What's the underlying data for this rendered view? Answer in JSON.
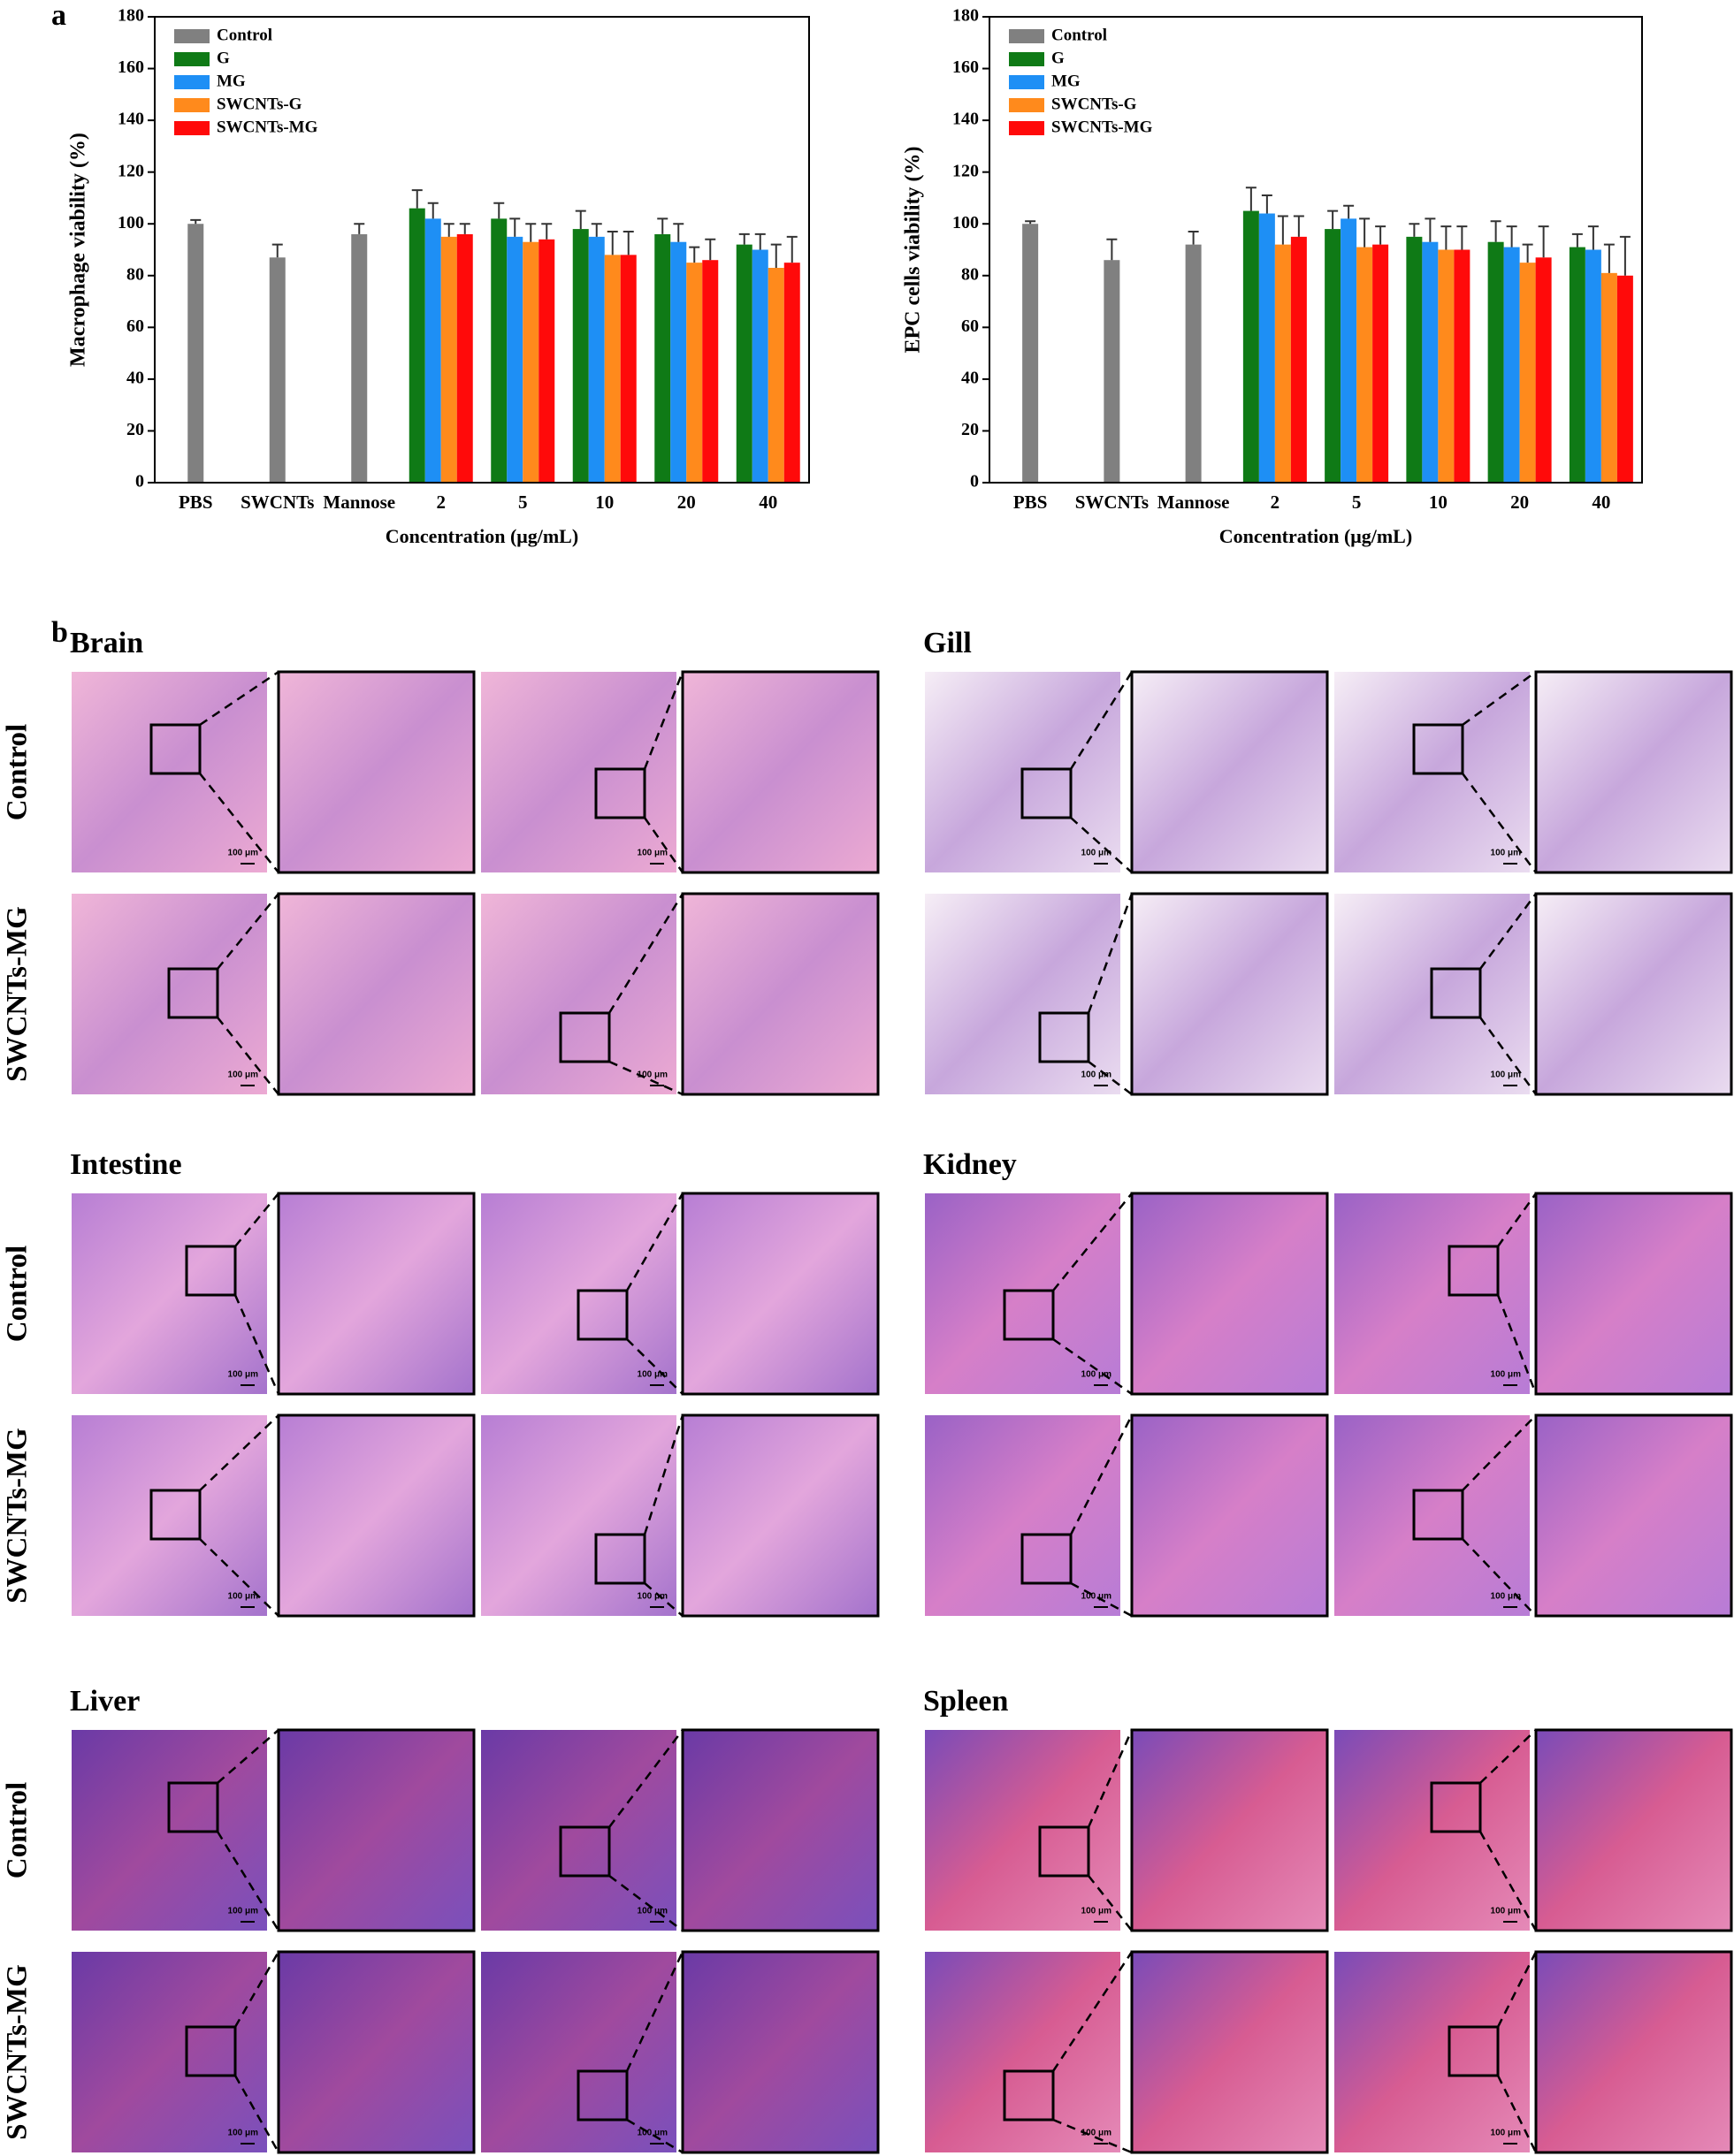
{
  "panel_labels": [
    "a",
    "b"
  ],
  "chart_data": [
    {
      "type": "bar",
      "ylabel": "Macrophage viability (%)",
      "xlabel": "Concentration (μg/mL)",
      "categories": [
        "PBS",
        "SWCNTs",
        "Mannose",
        "2",
        "5",
        "10",
        "20",
        "40"
      ],
      "ylim": [
        0,
        180
      ],
      "yticks": [
        0,
        20,
        40,
        60,
        80,
        100,
        120,
        140,
        160,
        180
      ],
      "legend": "upper-left",
      "series": [
        {
          "name": "Control",
          "color": "#808080",
          "values": [
            100,
            87,
            96,
            null,
            null,
            null,
            null,
            null
          ],
          "errors": [
            1.5,
            5,
            4,
            null,
            null,
            null,
            null,
            null
          ]
        },
        {
          "name": "G",
          "color": "#0f7a16",
          "values": [
            null,
            null,
            null,
            106,
            102,
            98,
            96,
            92
          ],
          "errors": [
            null,
            null,
            null,
            7,
            6,
            7,
            6,
            4
          ]
        },
        {
          "name": "MG",
          "color": "#1e8ff5",
          "values": [
            null,
            null,
            null,
            102,
            95,
            95,
            93,
            90
          ],
          "errors": [
            null,
            null,
            null,
            6,
            7,
            5,
            7,
            6
          ]
        },
        {
          "name": "SWCNTs-G",
          "color": "#ff8a1c",
          "values": [
            null,
            null,
            null,
            95,
            93,
            88,
            85,
            83
          ],
          "errors": [
            null,
            null,
            null,
            5,
            7,
            9,
            6,
            9
          ]
        },
        {
          "name": "SWCNTs-MG",
          "color": "#ff0a0a",
          "values": [
            null,
            null,
            null,
            96,
            94,
            88,
            86,
            85
          ],
          "errors": [
            null,
            null,
            null,
            4,
            6,
            9,
            8,
            10
          ]
        }
      ]
    },
    {
      "type": "bar",
      "ylabel": "EPC cells viability (%)",
      "xlabel": "Concentration (μg/mL)",
      "categories": [
        "PBS",
        "SWCNTs",
        "Mannose",
        "2",
        "5",
        "10",
        "20",
        "40"
      ],
      "ylim": [
        0,
        180
      ],
      "yticks": [
        0,
        20,
        40,
        60,
        80,
        100,
        120,
        140,
        160,
        180
      ],
      "legend": "upper-left",
      "series": [
        {
          "name": "Control",
          "color": "#808080",
          "values": [
            100,
            86,
            92,
            null,
            null,
            null,
            null,
            null
          ],
          "errors": [
            1,
            8,
            5,
            null,
            null,
            null,
            null,
            null
          ]
        },
        {
          "name": "G",
          "color": "#0f7a16",
          "values": [
            null,
            null,
            null,
            105,
            98,
            95,
            93,
            91
          ],
          "errors": [
            null,
            null,
            null,
            9,
            7,
            5,
            8,
            5
          ]
        },
        {
          "name": "MG",
          "color": "#1e8ff5",
          "values": [
            null,
            null,
            null,
            104,
            102,
            93,
            91,
            90
          ],
          "errors": [
            null,
            null,
            null,
            7,
            5,
            9,
            8,
            9
          ]
        },
        {
          "name": "SWCNTs-G",
          "color": "#ff8a1c",
          "values": [
            null,
            null,
            null,
            92,
            91,
            90,
            85,
            81
          ],
          "errors": [
            null,
            null,
            null,
            11,
            11,
            9,
            7,
            11
          ]
        },
        {
          "name": "SWCNTs-MG",
          "color": "#ff0a0a",
          "values": [
            null,
            null,
            null,
            95,
            92,
            90,
            87,
            80
          ],
          "errors": [
            null,
            null,
            null,
            8,
            7,
            9,
            12,
            15
          ]
        }
      ]
    }
  ],
  "histology": {
    "row_labels": [
      "Control",
      "SWCNTs-MG"
    ],
    "scale_bar": "100 μm",
    "panels": [
      "Brain",
      "Gill",
      "Intestine",
      "Kidney",
      "Liver",
      "Spleen"
    ]
  }
}
